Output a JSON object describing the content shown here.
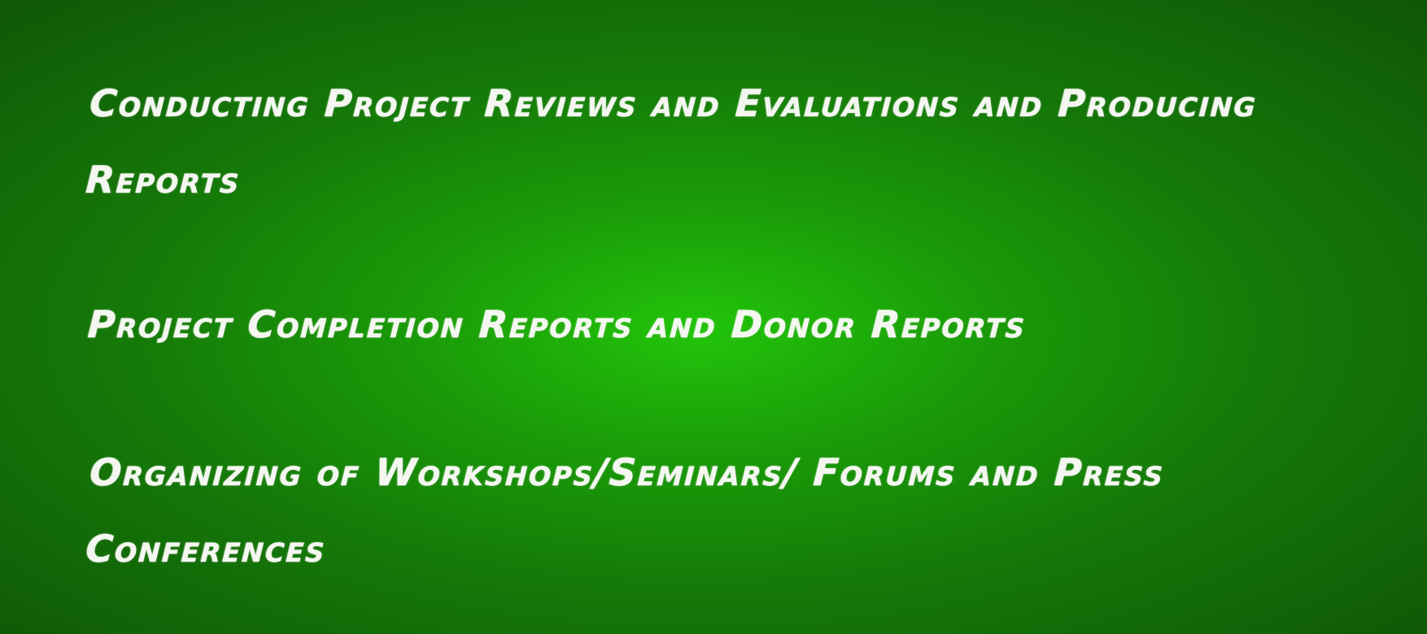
{
  "items": [
    {
      "text": "Conducting Project Reviews and Evaluations and Producing Reports"
    },
    {
      "text": "Project Completion Reports and Donor Reports"
    },
    {
      "text": "Organizing of Workshops/Seminars/ Forums and Press Conferences"
    }
  ],
  "colors": {
    "background_center": "#22c40a",
    "background_edge": "#0f5606",
    "text": "#f4f7f0"
  }
}
